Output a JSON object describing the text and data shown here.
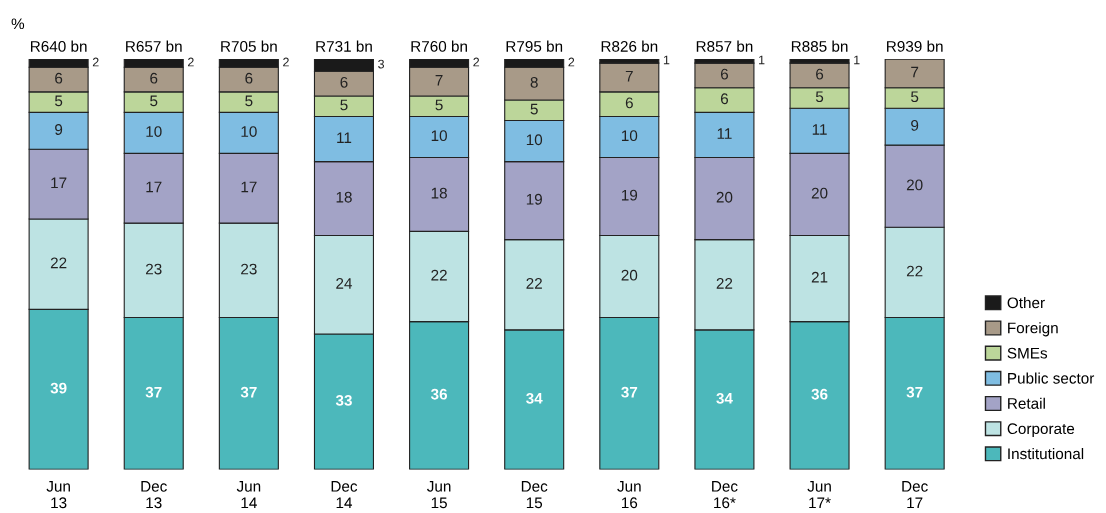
{
  "chart_data": {
    "type": "bar",
    "stacked": true,
    "ylabel": "%",
    "data_labels": true,
    "legend": "right",
    "grid": false,
    "categories": [
      "Jun\n13",
      "Dec\n13",
      "Jun\n14",
      "Dec\n14",
      "Jun\n15",
      "Dec\n15",
      "Jun\n16",
      "Dec\n16*",
      "Jun\n17*",
      "Dec\n17"
    ],
    "totals": [
      "R640 bn",
      "R657 bn",
      "R705 bn",
      "R731 bn",
      "R760 bn",
      "R795 bn",
      "R826 bn",
      "R857 bn",
      "R885 bn",
      "R939 bn"
    ],
    "series": [
      {
        "name": "Institutional",
        "color": "#4cb8bb",
        "values": [
          39,
          37,
          37,
          33,
          36,
          34,
          37,
          34,
          36,
          37
        ]
      },
      {
        "name": "Corporate",
        "color": "#bde3e3",
        "values": [
          22,
          23,
          23,
          24,
          22,
          22,
          20,
          22,
          21,
          22
        ]
      },
      {
        "name": "Retail",
        "color": "#a3a3c6",
        "values": [
          17,
          17,
          17,
          18,
          18,
          19,
          19,
          20,
          20,
          20
        ]
      },
      {
        "name": "Public sector",
        "color": "#7fbde2",
        "values": [
          9,
          10,
          10,
          11,
          10,
          10,
          10,
          11,
          11,
          9
        ]
      },
      {
        "name": "SMEs",
        "color": "#bcd69a",
        "values": [
          5,
          5,
          5,
          5,
          5,
          5,
          6,
          6,
          5,
          5
        ]
      },
      {
        "name": "Foreign",
        "color": "#a89a88",
        "values": [
          6,
          6,
          6,
          6,
          7,
          8,
          7,
          6,
          6,
          7
        ]
      },
      {
        "name": "Other",
        "color": "#1a1a1a",
        "values": [
          2,
          2,
          2,
          3,
          2,
          2,
          1,
          1,
          1,
          null
        ]
      }
    ]
  }
}
